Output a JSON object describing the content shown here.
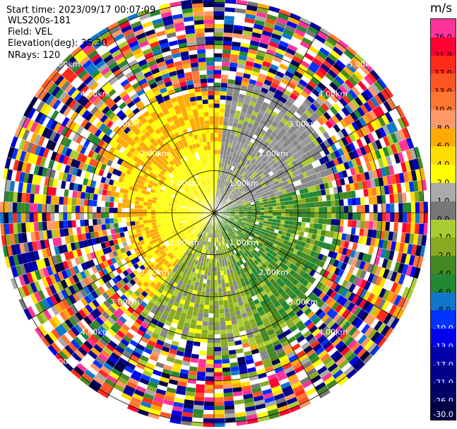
{
  "info": {
    "start_time": "Start time: 2023/09/17 00:07:09",
    "instrument": "WLS200s-181",
    "field": "Field: VEL",
    "elevation": "Elevation(deg): 35.30",
    "nrays": "NRays: 120"
  },
  "range_labels": [
    "1.00km",
    "2.00km",
    "3.00km",
    "4.00km",
    "5.00km"
  ],
  "colorbar": {
    "unit": "m/s",
    "levels": [
      {
        "label": "26.0",
        "color": "#ff3399",
        "text": "#000000"
      },
      {
        "label": "21.0",
        "color": "#ff0033",
        "text": "#000000"
      },
      {
        "label": "17.0",
        "color": "#ff2a1a",
        "text": "#000000"
      },
      {
        "label": "13.0",
        "color": "#ff5522",
        "text": "#000000"
      },
      {
        "label": "10.0",
        "color": "#ff7733",
        "text": "#000000"
      },
      {
        "label": "8.0",
        "color": "#ff9966",
        "text": "#000000"
      },
      {
        "label": "6.0",
        "color": "#ffaa00",
        "text": "#000000"
      },
      {
        "label": "4.0",
        "color": "#ffdd00",
        "text": "#000000"
      },
      {
        "label": "2.0",
        "color": "#ffff00",
        "text": "#000000"
      },
      {
        "label": "1.0",
        "color": "#aaaaaa",
        "text": "#000000"
      },
      {
        "label": "0.0",
        "color": "#777777",
        "text": "#000000"
      },
      {
        "label": "-1.0",
        "color": "#aacc33",
        "text": "#000000"
      },
      {
        "label": "-2.0",
        "color": "#88aa22",
        "text": "#000000"
      },
      {
        "label": "-4.0",
        "color": "#448822",
        "text": "#000000"
      },
      {
        "label": "-6.0",
        "color": "#228833",
        "text": "#000000"
      },
      {
        "label": "-8.0",
        "color": "#1177cc",
        "text": "#000000"
      },
      {
        "label": "-10.0",
        "color": "#0033ff",
        "text": "#ffffff"
      },
      {
        "label": "-13.0",
        "color": "#0000ee",
        "text": "#ffffff"
      },
      {
        "label": "-17.0",
        "color": "#0000aa",
        "text": "#ffffff"
      },
      {
        "label": "-21.0",
        "color": "#000088",
        "text": "#ffffff"
      },
      {
        "label": "-26.0",
        "color": "#000066",
        "text": "#ffffff"
      },
      {
        "label": "-30.0",
        "color": "#000044",
        "text": "#ffffff"
      }
    ]
  }
}
